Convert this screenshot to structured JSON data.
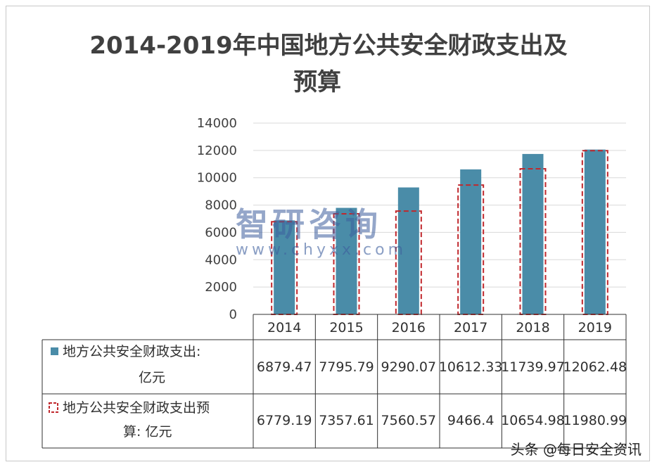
{
  "chart_data": {
    "type": "bar",
    "title_line1": "2014-2019年中国地方公共安全财政支出及",
    "title_line2": "预算",
    "categories": [
      "2014",
      "2015",
      "2016",
      "2017",
      "2018",
      "2019"
    ],
    "yticks": [
      "0",
      "2000",
      "4000",
      "6000",
      "8000",
      "10000",
      "12000",
      "14000"
    ],
    "ylim": [
      0,
      14000
    ],
    "series": [
      {
        "name_line1": "地方公共安全财政支出:",
        "name_line2": "亿元",
        "values": [
          6879.47,
          7795.79,
          9290.07,
          10612.33,
          11739.97,
          12062.48
        ],
        "labels": [
          "6879.47",
          "7795.79",
          "9290.07",
          "10612.33",
          "11739.97",
          "12062.48"
        ],
        "color": "#4a8ca8"
      },
      {
        "name_line1": "地方公共安全财政支出预",
        "name_line2": "算: 亿元",
        "values": [
          6779.19,
          7357.61,
          7560.57,
          9466.4,
          10654.98,
          11980.99
        ],
        "labels": [
          "6779.19",
          "7357.61",
          "7560.57",
          "9466.4",
          "10654.98",
          "11980.99"
        ],
        "color": "#c0282d",
        "style": "dashed-outline"
      }
    ],
    "grid": true,
    "legend": "data-table"
  },
  "watermark": {
    "text": "智研咨询",
    "url": "www.chyxx.com"
  },
  "footer": "头条 @每日安全资讯"
}
